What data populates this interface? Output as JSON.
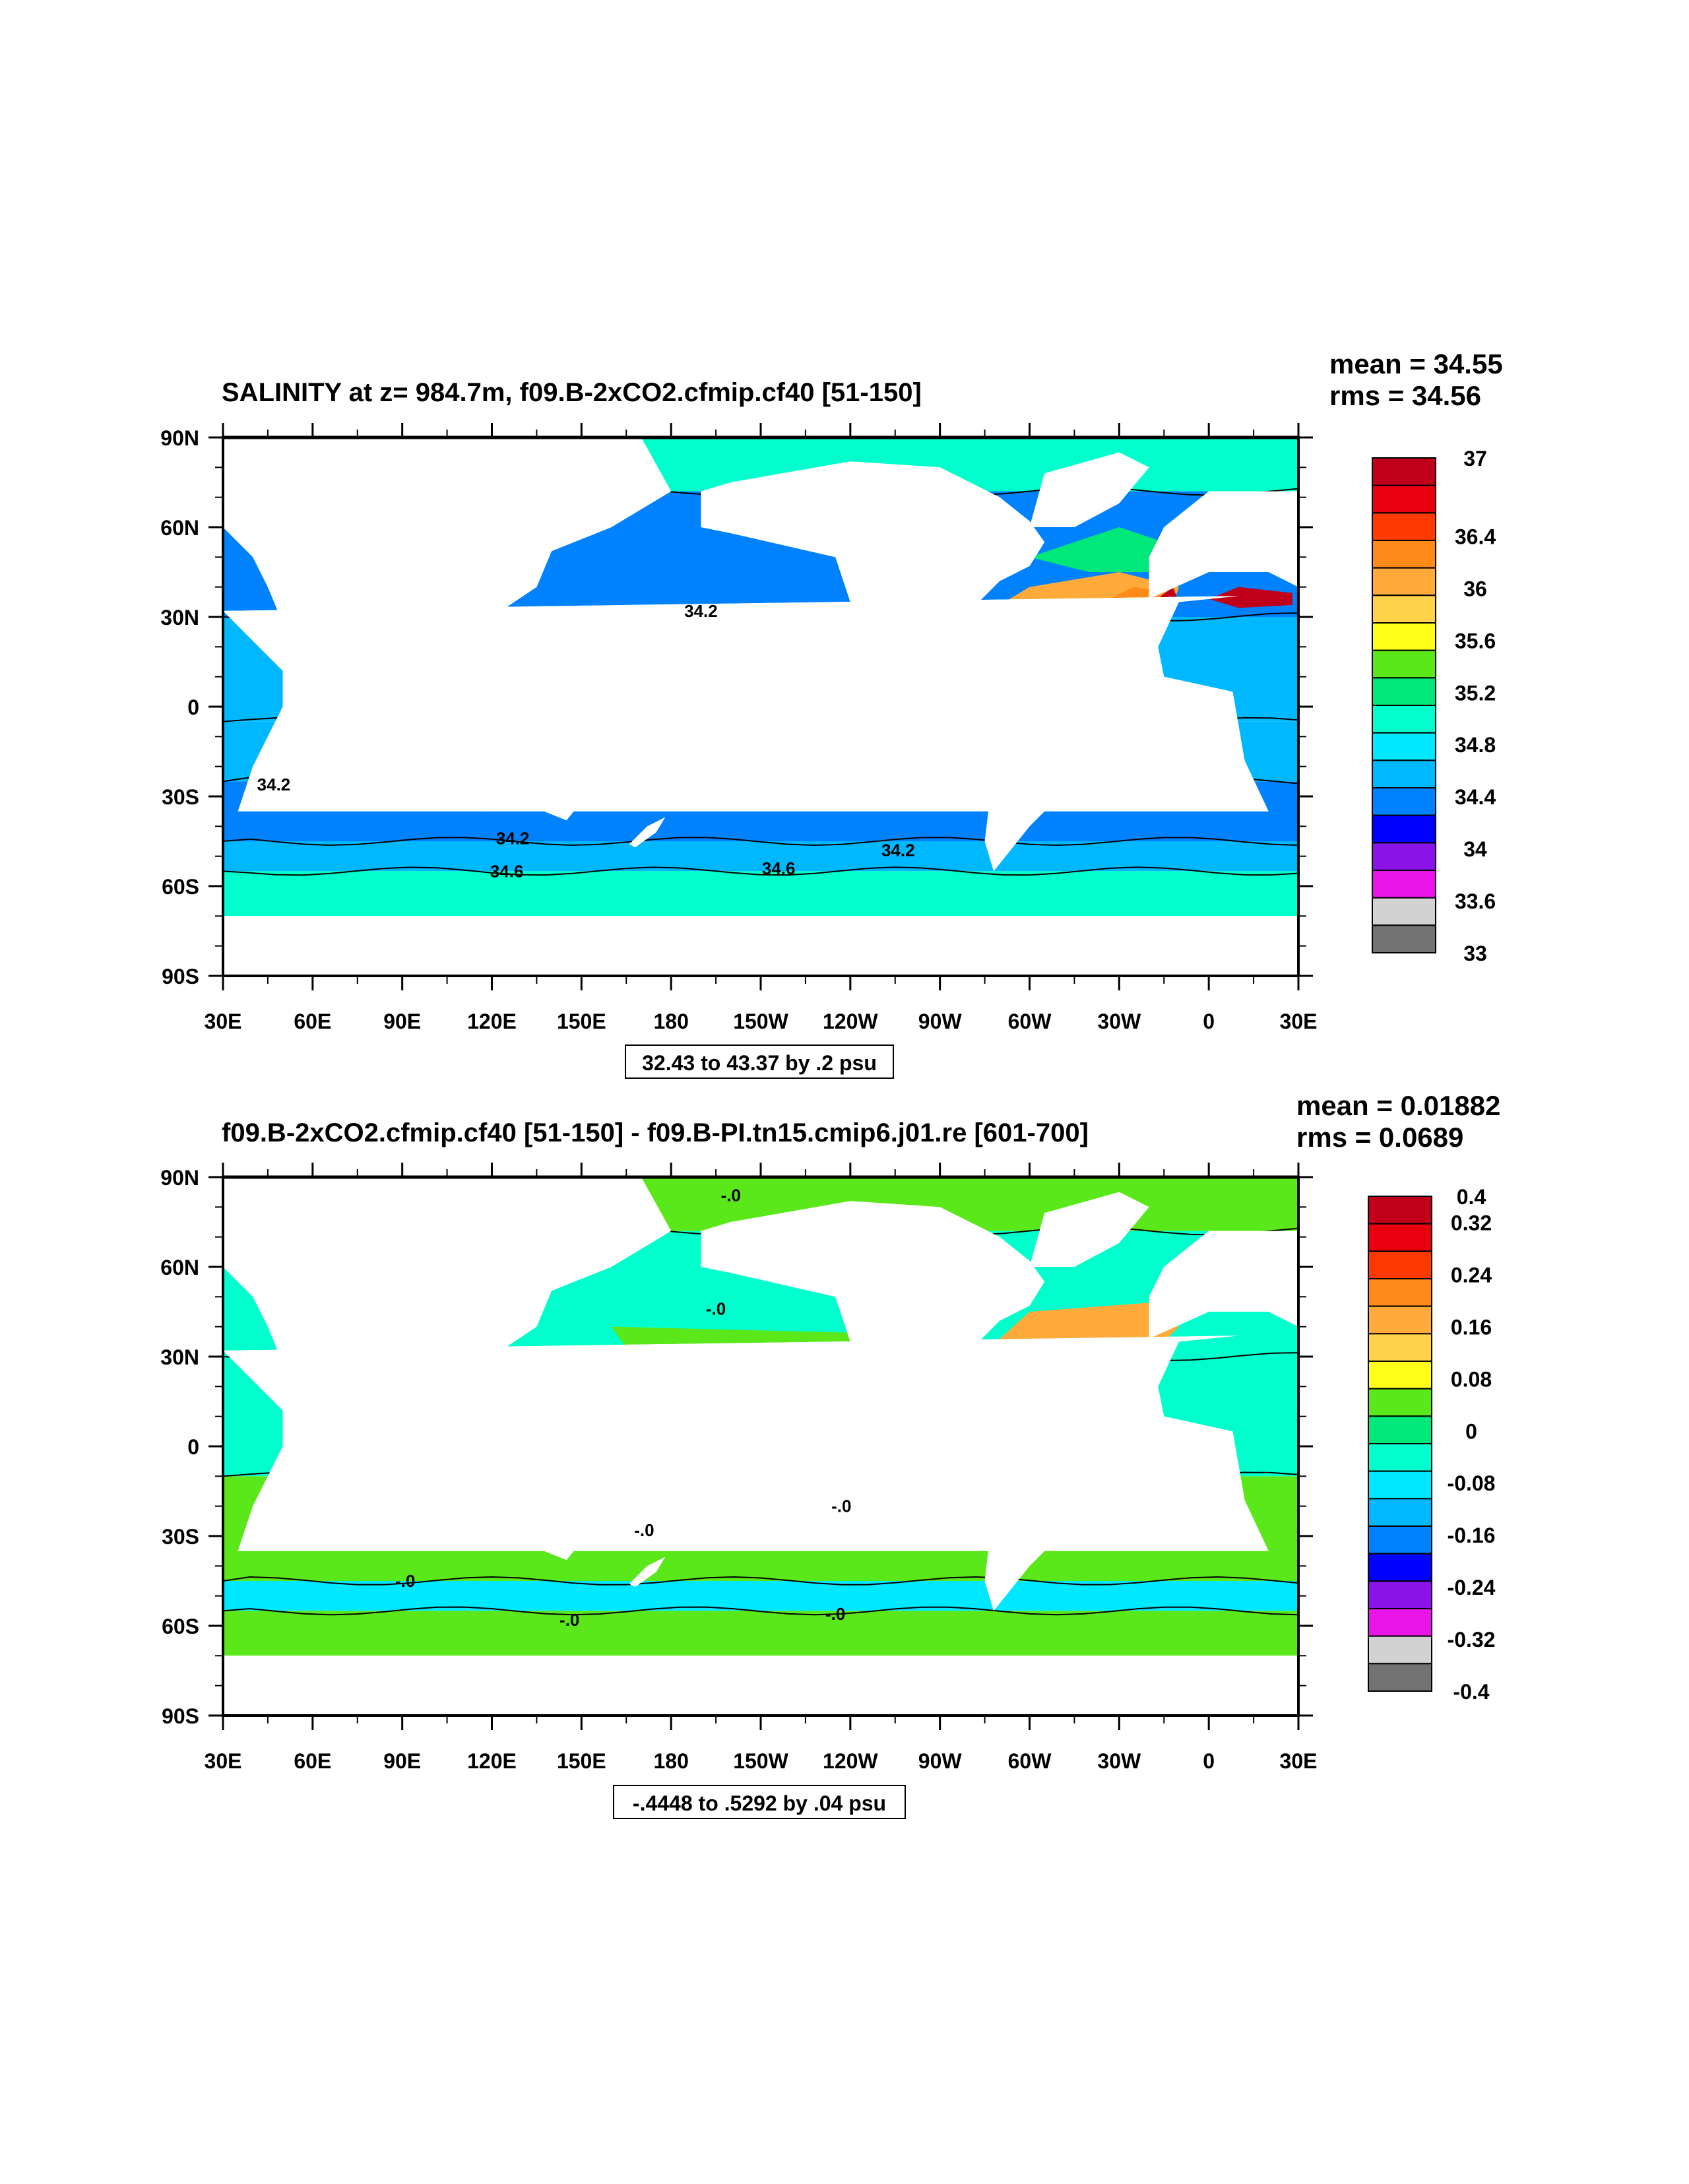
{
  "panels": [
    {
      "title": "SALINITY at z= 984.7m, f09.B-2xCO2.cfmip.cf40 [51-150]",
      "stats": {
        "mean": "mean = 34.55",
        "rms": "rms = 34.56"
      },
      "range_note": "32.43 to 43.37 by .2 psu",
      "colorbar": {
        "colors": [
          "#c0001a",
          "#e8000e",
          "#ff3a00",
          "#ff8a1a",
          "#ffaa3a",
          "#ffd24a",
          "#ffff1a",
          "#5ae81a",
          "#00e87a",
          "#00ffcc",
          "#00e8ff",
          "#00b8ff",
          "#0082ff",
          "#0000ff",
          "#8a14e8",
          "#e814e8",
          "#d2d2d2",
          "#737373"
        ],
        "labels": [
          "37",
          "36.4",
          "36",
          "35.6",
          "35.2",
          "34.8",
          "34.4",
          "34",
          "33.6",
          "33"
        ],
        "label_slots": [
          0,
          3,
          5,
          7,
          9,
          11,
          13,
          15,
          17,
          19
        ]
      },
      "contour_labels": [
        {
          "text": "34.2",
          "lon": 190,
          "lat": 30
        },
        {
          "text": "34.2",
          "lon": 47,
          "lat": -28
        },
        {
          "text": "34.2",
          "lon": 127,
          "lat": -46
        },
        {
          "text": "34.2",
          "lon": 256,
          "lat": -50
        },
        {
          "text": "34.6",
          "lon": 125,
          "lat": -57
        },
        {
          "text": "34.6",
          "lon": 216,
          "lat": -56
        }
      ]
    },
    {
      "title": "f09.B-2xCO2.cfmip.cf40 [51-150] - f09.B-PI.tn15.cmip6.j01.re [601-700]",
      "stats": {
        "mean": "mean = 0.01882",
        "rms": "rms = 0.0689"
      },
      "range_note": "-.4448 to .5292 by .04 psu",
      "colorbar": {
        "colors": [
          "#c0001a",
          "#e8000e",
          "#ff3a00",
          "#ff8a1a",
          "#ffaa3a",
          "#ffd24a",
          "#ffff1a",
          "#5ae81a",
          "#00e87a",
          "#00ffcc",
          "#00e8ff",
          "#00b8ff",
          "#0082ff",
          "#0000ff",
          "#8a14e8",
          "#e814e8",
          "#d2d2d2",
          "#737373"
        ],
        "labels": [
          "0.4",
          "0.32",
          "0.24",
          "0.16",
          "0.08",
          "0",
          "-0.08",
          "-0.16",
          "-0.24",
          "-0.32",
          "-0.4"
        ],
        "label_slots": [
          0,
          1,
          3,
          5,
          7,
          9,
          11,
          13,
          15,
          17,
          19
        ]
      },
      "contour_labels": [
        {
          "text": "-.0",
          "lon": 200,
          "lat": 82
        },
        {
          "text": "-.0",
          "lon": 195,
          "lat": 44
        },
        {
          "text": "-.0",
          "lon": 237,
          "lat": -22
        },
        {
          "text": "-.0",
          "lon": 171,
          "lat": -30
        },
        {
          "text": "-.0",
          "lon": 91,
          "lat": -47
        },
        {
          "text": "-.0",
          "lon": 235,
          "lat": -58
        },
        {
          "text": "-.0",
          "lon": 146,
          "lat": -60
        }
      ]
    }
  ],
  "x_ticks": [
    "30E",
    "60E",
    "90E",
    "120E",
    "150E",
    "180",
    "150W",
    "120W",
    "90W",
    "60W",
    "30W",
    "0",
    "30E"
  ],
  "y_ticks": [
    "90N",
    "60N",
    "30N",
    "0",
    "30S",
    "60S",
    "90S"
  ],
  "map_fields": {
    "panel1_zones": [
      {
        "lat": [
          72,
          90
        ],
        "color": "#00ffcc"
      },
      {
        "lat": [
          30,
          72
        ],
        "color": "#0082ff"
      },
      {
        "lat": [
          -5,
          30
        ],
        "color": "#00b8ff"
      },
      {
        "lat": [
          -25,
          -5
        ],
        "color": "#00b8ff"
      },
      {
        "lat": [
          -45,
          -25
        ],
        "color": "#0082ff"
      },
      {
        "lat": [
          -55,
          -45
        ],
        "color": "#00b8ff"
      },
      {
        "lat": [
          -70,
          -55
        ],
        "color": "#00ffcc"
      }
    ],
    "panel2_zones": [
      {
        "lat": [
          72,
          90
        ],
        "color": "#5ae81a"
      },
      {
        "lat": [
          30,
          72
        ],
        "color": "#00ffcc"
      },
      {
        "lat": [
          -10,
          30
        ],
        "color": "#00ffcc"
      },
      {
        "lat": [
          -45,
          -10
        ],
        "color": "#5ae81a"
      },
      {
        "lat": [
          -55,
          -45
        ],
        "color": "#00e8ff"
      },
      {
        "lat": [
          -70,
          -55
        ],
        "color": "#5ae81a"
      }
    ]
  }
}
